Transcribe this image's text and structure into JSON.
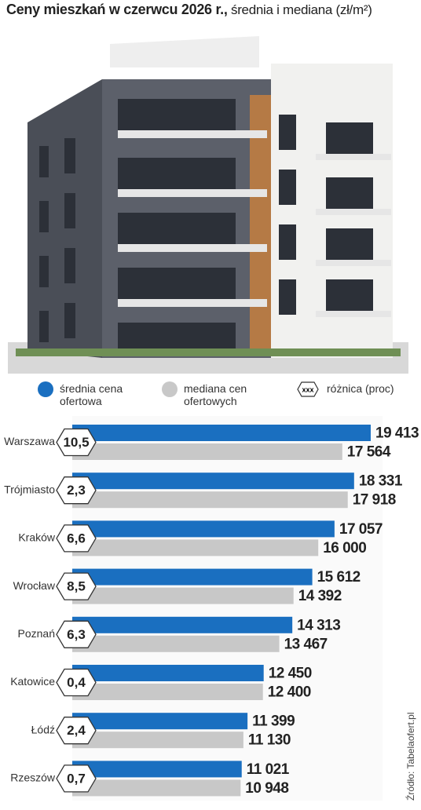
{
  "chart_data": {
    "type": "bar",
    "title": "Ceny mieszkań w czerwcu 2026 r.,",
    "subtitle": "średnia i mediana (zł/m²)",
    "categories": [
      "Warszawa",
      "Trójmiasto",
      "Kraków",
      "Wrocław",
      "Poznań",
      "Katowice",
      "Łódź",
      "Rzeszów"
    ],
    "series": [
      {
        "name": "średnia cena ofertowa",
        "color": "#1a6fc0",
        "values": [
          19413,
          18331,
          17057,
          15612,
          14313,
          12450,
          11399,
          11021
        ],
        "value_labels": [
          "19 413",
          "18 331",
          "17 057",
          "15 612",
          "14 313",
          "12 450",
          "11 399",
          "11 021"
        ]
      },
      {
        "name": "mediana cen ofertowych",
        "color": "#c8c8c8",
        "values": [
          17564,
          17918,
          16000,
          14392,
          13467,
          12400,
          11130,
          10948
        ],
        "value_labels": [
          "17 564",
          "17 918",
          "16 000",
          "14 392",
          "13 467",
          "12 400",
          "11 130",
          "10 948"
        ]
      }
    ],
    "difference": {
      "name": "różnica (proc)",
      "marker": "xxx",
      "values": [
        10.5,
        2.3,
        6.6,
        8.5,
        6.3,
        0.4,
        2.4,
        0.7
      ],
      "value_labels": [
        "10,5",
        "2,3",
        "6,6",
        "8,5",
        "6,3",
        "0,4",
        "2,4",
        "0,7"
      ]
    },
    "source": "Źródło: Tabelaofert.pl"
  }
}
